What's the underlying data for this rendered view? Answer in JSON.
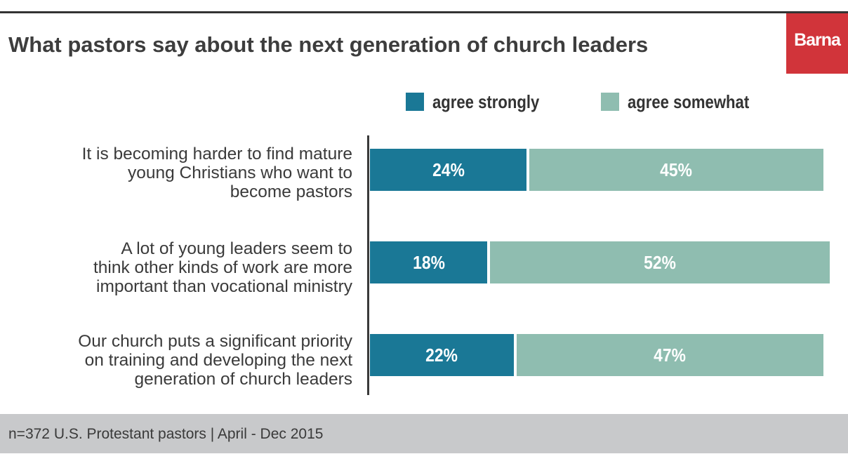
{
  "chart_data": {
    "type": "bar",
    "orientation": "horizontal",
    "stacked": true,
    "title": "What pastors say about the next generation of church leaders",
    "categories": [
      "It is becoming harder to find mature young Christians who want to become pastors",
      "A lot of young leaders seem to think other kinds of work are more important than vocational ministry",
      "Our church puts a significant priority on training and developing the next generation of church leaders"
    ],
    "series": [
      {
        "name": "agree strongly",
        "values": [
          24,
          18,
          22
        ],
        "labels": [
          "24%",
          "18%",
          "22%"
        ],
        "color": "#1a7896"
      },
      {
        "name": "agree somewhat",
        "values": [
          45,
          52,
          47
        ],
        "labels": [
          "45%",
          "52%",
          "47%"
        ],
        "color": "#8fbdb0"
      }
    ],
    "legend": "top",
    "grid": false,
    "xlim": [
      0,
      100
    ]
  },
  "logo": "Barna",
  "logo_color": "#d1343a",
  "footer": "n=372 U.S. Protestant pastors | April - Dec 2015"
}
